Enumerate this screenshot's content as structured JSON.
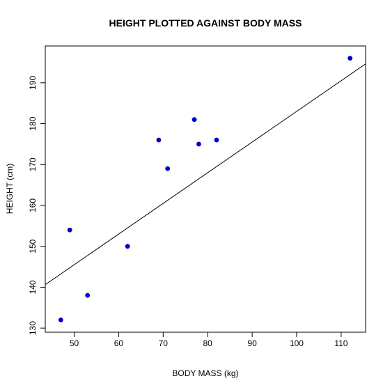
{
  "chart_data": {
    "type": "scatter",
    "title": "HEIGHT PLOTTED AGAINST BODY MASS",
    "xlabel": "BODY MASS (kg)",
    "ylabel": "HEIGHT (cm)",
    "xlim": [
      43.5,
      115.5
    ],
    "ylim": [
      129.0,
      199.0
    ],
    "xticks": [
      50,
      60,
      70,
      80,
      90,
      100,
      110
    ],
    "yticks": [
      130,
      140,
      150,
      160,
      170,
      180,
      190
    ],
    "x": [
      47,
      49,
      53,
      62,
      69,
      71,
      77,
      78,
      82,
      112
    ],
    "y": [
      132,
      154,
      138,
      150,
      176,
      169,
      181,
      175,
      176,
      196
    ],
    "fit_line": {
      "slope": 0.75,
      "intercept": 108
    },
    "grid": false,
    "point_color": "#0000cc",
    "line_color": "#000000"
  }
}
